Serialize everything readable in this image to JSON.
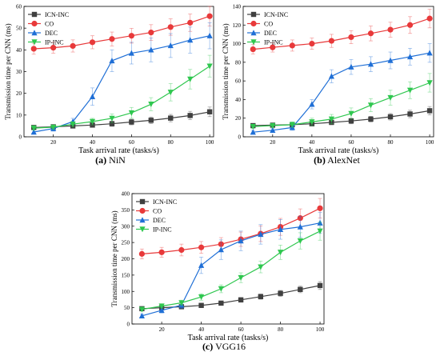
{
  "colors": {
    "ICN-INC": "#404040",
    "CO": "#e8393a",
    "DEC": "#1f6fd6",
    "IP-INC": "#2fc74f",
    "error_bar_alpha": "0.45"
  },
  "marker_shapes": {
    "ICN-INC": "square",
    "CO": "circle",
    "DEC": "triangle-up",
    "IP-INC": "triangle-down"
  },
  "captions": [
    {
      "letter": "(a)",
      "name": "NiN"
    },
    {
      "letter": "(b)",
      "name": "AlexNet"
    },
    {
      "letter": "(c)",
      "name": "VGG16"
    }
  ],
  "chart_data": [
    {
      "type": "line",
      "xlabel": "Task arrival rate (tasks/s)",
      "ylabel": "Transmission time per CNN (ms)",
      "xlim": [
        5,
        102
      ],
      "ylim": [
        0,
        60
      ],
      "xticks": [
        20,
        40,
        60,
        80,
        100
      ],
      "yticks": [
        0,
        10,
        20,
        30,
        40,
        50,
        60
      ],
      "legend_position": "top-left",
      "grid": false,
      "x": [
        10,
        20,
        30,
        40,
        50,
        60,
        70,
        80,
        90,
        100
      ],
      "series": [
        {
          "name": "ICN-INC",
          "values": [
            4.3,
            4.6,
            5.0,
            5.4,
            6.0,
            6.8,
            7.6,
            8.6,
            9.8,
            11.5
          ],
          "errors": [
            0.8,
            0.8,
            0.9,
            1.0,
            1.2,
            1.3,
            1.5,
            1.7,
            1.9,
            2.2
          ]
        },
        {
          "name": "CO",
          "values": [
            40.5,
            41.0,
            41.8,
            43.5,
            45.0,
            46.5,
            48.0,
            50.5,
            52.5,
            55.5
          ],
          "errors": [
            2.5,
            2.5,
            2.8,
            3.0,
            3.2,
            3.4,
            3.6,
            3.8,
            4.0,
            4.5
          ]
        },
        {
          "name": "DEC",
          "values": [
            2.2,
            3.8,
            7.0,
            18.5,
            35.0,
            38.5,
            40.0,
            42.0,
            44.5,
            46.5
          ],
          "errors": [
            1.0,
            1.2,
            1.5,
            4.0,
            5.0,
            5.0,
            5.5,
            5.5,
            6.0,
            6.0
          ]
        },
        {
          "name": "IP-INC",
          "values": [
            4.0,
            4.4,
            5.8,
            7.0,
            8.5,
            11.0,
            15.0,
            20.5,
            26.5,
            32.5
          ],
          "errors": [
            0.8,
            0.9,
            1.2,
            1.5,
            2.0,
            2.5,
            3.0,
            4.0,
            4.5,
            5.0
          ]
        }
      ]
    },
    {
      "type": "line",
      "xlabel": "Task arrival rate (tasks/s)",
      "ylabel": "Transmission time per CNN (ms)",
      "xlim": [
        5,
        102
      ],
      "ylim": [
        0,
        140
      ],
      "xticks": [
        20,
        40,
        60,
        80,
        100
      ],
      "yticks": [
        0,
        20,
        40,
        60,
        80,
        100,
        120,
        140
      ],
      "legend_position": "top-left",
      "grid": false,
      "x": [
        10,
        20,
        30,
        40,
        50,
        60,
        70,
        80,
        90,
        100
      ],
      "series": [
        {
          "name": "ICN-INC",
          "values": [
            12,
            12.5,
            13,
            14,
            15.5,
            17,
            19,
            21.5,
            24.5,
            28
          ],
          "errors": [
            2,
            2,
            2,
            2.5,
            2.5,
            3,
            3,
            3.5,
            4,
            4.5
          ]
        },
        {
          "name": "CO",
          "values": [
            94,
            96,
            98,
            100,
            103,
            107,
            111,
            115,
            120,
            127
          ],
          "errors": [
            5,
            5,
            6,
            6,
            7,
            7,
            8,
            8,
            9,
            10
          ]
        },
        {
          "name": "DEC",
          "values": [
            5,
            7,
            10,
            35,
            65,
            75,
            78,
            82,
            86,
            90
          ],
          "errors": [
            2,
            2,
            3,
            5,
            7,
            8,
            8,
            9,
            9,
            10
          ]
        },
        {
          "name": "IP-INC",
          "values": [
            11,
            12,
            13,
            16,
            19,
            25,
            34,
            42,
            50,
            58
          ],
          "errors": [
            2,
            2,
            3,
            4,
            5,
            6,
            7,
            8,
            9,
            10
          ]
        }
      ]
    },
    {
      "type": "line",
      "xlabel": "Task arrival rate (tasks/s)",
      "ylabel": "Transmission time per CNN (ms)",
      "xlim": [
        5,
        102
      ],
      "ylim": [
        0,
        400
      ],
      "xticks": [
        20,
        40,
        60,
        80,
        100
      ],
      "yticks": [
        0,
        50,
        100,
        150,
        200,
        250,
        300,
        350,
        400
      ],
      "legend_position": "top-left",
      "grid": false,
      "x": [
        10,
        20,
        30,
        40,
        50,
        60,
        70,
        80,
        90,
        100
      ],
      "series": [
        {
          "name": "ICN-INC",
          "values": [
            47,
            50,
            53,
            57,
            64,
            74,
            84,
            94,
            106,
            118
          ],
          "errors": [
            5,
            5,
            5,
            6,
            6,
            7,
            8,
            9,
            10,
            12
          ]
        },
        {
          "name": "CO",
          "values": [
            215,
            220,
            227,
            235,
            245,
            260,
            277,
            298,
            325,
            355
          ],
          "errors": [
            15,
            15,
            18,
            18,
            20,
            22,
            24,
            26,
            28,
            30
          ]
        },
        {
          "name": "DEC",
          "values": [
            25,
            42,
            58,
            180,
            228,
            255,
            275,
            290,
            298,
            310
          ],
          "errors": [
            5,
            8,
            10,
            25,
            30,
            30,
            30,
            30,
            32,
            32
          ]
        },
        {
          "name": "IP-INC",
          "values": [
            45,
            55,
            65,
            83,
            108,
            142,
            175,
            220,
            255,
            285
          ],
          "errors": [
            5,
            6,
            8,
            10,
            12,
            15,
            18,
            22,
            25,
            28
          ]
        }
      ]
    }
  ]
}
